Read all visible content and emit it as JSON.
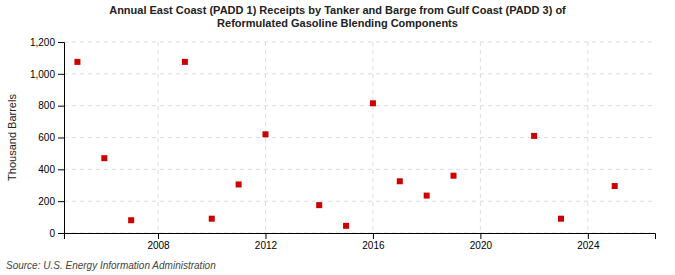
{
  "chart_data": {
    "type": "scatter",
    "title": "Annual East Coast (PADD 1) Receipts by Tanker and Barge from Gulf Coast (PADD 3) of\nReformulated Gasoline Blending Components",
    "ylabel": "Thousand Barrels",
    "annotations": [
      "Source: U.S. Energy Information Administration"
    ],
    "x": [
      2005,
      2006,
      2007,
      2009,
      2010,
      2011,
      2012,
      2014,
      2015,
      2016,
      2017,
      2018,
      2019,
      2022,
      2023,
      2025
    ],
    "values": [
      1075,
      470,
      80,
      1075,
      90,
      305,
      620,
      175,
      45,
      815,
      325,
      235,
      360,
      610,
      90,
      295
    ],
    "color": "#cc0000",
    "marker": "square",
    "xlim": [
      2004.5,
      2026.5
    ],
    "xticks": [
      2008,
      2012,
      2016,
      2020,
      2024
    ],
    "ylim": [
      0,
      1200
    ],
    "yticks": [
      0,
      200,
      400,
      600,
      800,
      {
        "value": 1000,
        "label": "1,000"
      },
      {
        "value": 1200,
        "label": "1,200"
      }
    ],
    "grid": true
  }
}
